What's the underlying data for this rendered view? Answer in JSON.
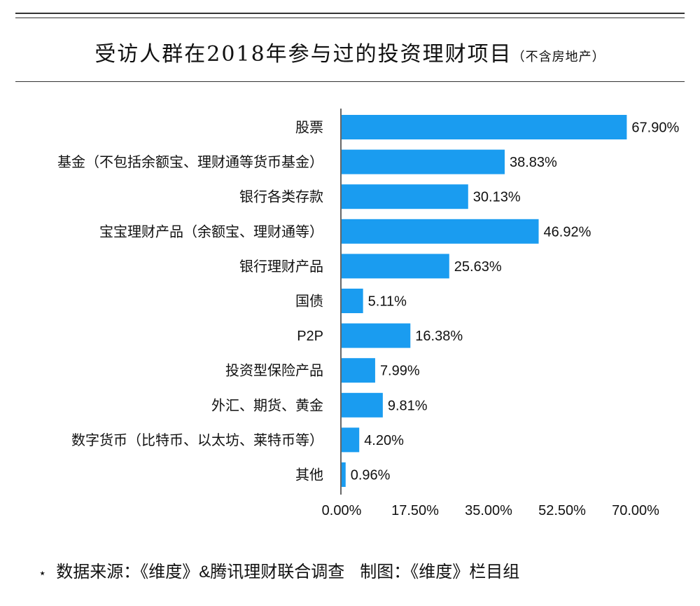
{
  "header": {
    "title": "受访人群在2018年参与过的投资理财项目",
    "subtitle": "（不含房地产）"
  },
  "chart_data": {
    "type": "bar",
    "orientation": "horizontal",
    "title": "受访人群在2018年参与过的投资理财项目（不含房地产）",
    "categories": [
      "股票",
      "基金（不包括余额宝、理财通等货币基金）",
      "银行各类存款",
      "宝宝理财产品（余额宝、理财通等）",
      "银行理财产品",
      "国债",
      "P2P",
      "投资型保险产品",
      "外汇、期货、黄金",
      "数字货币（比特币、以太坊、莱特币等）",
      "其他"
    ],
    "values": [
      67.9,
      38.83,
      30.13,
      46.92,
      25.63,
      5.11,
      16.38,
      7.99,
      9.81,
      4.2,
      0.96
    ],
    "value_labels": [
      "67.90%",
      "38.83%",
      "30.13%",
      "46.92%",
      "25.63%",
      "5.11%",
      "16.38%",
      "7.99%",
      "9.81%",
      "4.20%",
      "0.96%"
    ],
    "xlim": [
      0,
      70
    ],
    "xticks": [
      0,
      17.5,
      35,
      52.5,
      70
    ],
    "xtick_labels": [
      "0.00%",
      "17.50%",
      "35.00%",
      "52.50%",
      "70.00%"
    ],
    "grid": false,
    "legend": "none",
    "bar_color": "#1a9cf0"
  },
  "footer": {
    "star": "⋆",
    "source": "数据来源：《维度》&腾讯理财联合调查",
    "credit": "制图：《维度》栏目组"
  }
}
